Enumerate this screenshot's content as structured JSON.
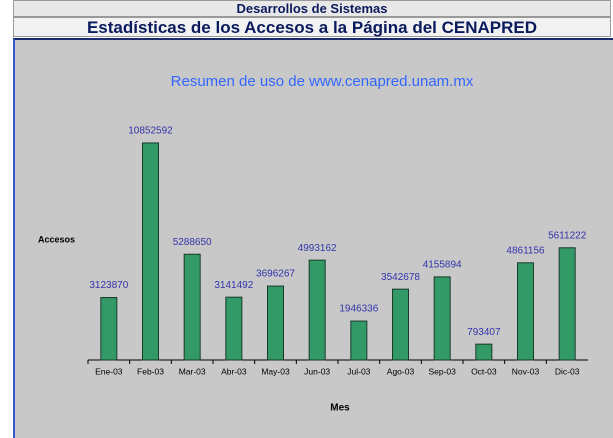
{
  "header": {
    "title": "Desarrollos de Sistemas",
    "subtitle": "Estadísticas de los Accesos a la Página del CENAPRED"
  },
  "chart_data": {
    "type": "bar",
    "title": "Resumen de uso de www.cenapred.unam.mx",
    "y_label": "Accesos",
    "x_label": "Mes",
    "categories": [
      "Ene-03",
      "Feb-03",
      "Mar-03",
      "Abr-03",
      "May-03",
      "Jun-03",
      "Jul-03",
      "Ago-03",
      "Sep-03",
      "Oct-03",
      "Nov-03",
      "Dic-03"
    ],
    "values": [
      3123870,
      10852592,
      5288650,
      3141492,
      3696267,
      4993162,
      1946336,
      3542678,
      4155894,
      793407,
      4861156,
      5611222
    ],
    "color": "#339966",
    "ylim": [
      0,
      12000000
    ],
    "grid": false
  }
}
